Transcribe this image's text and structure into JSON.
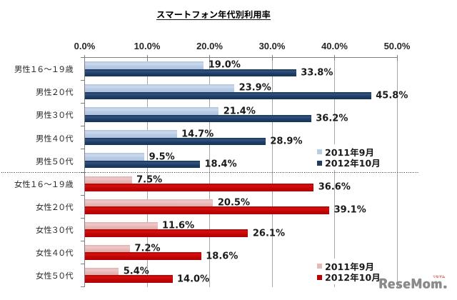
{
  "title": {
    "text": "スマートフォン年代別利用率"
  },
  "chart_data": {
    "type": "bar",
    "orientation": "horizontal",
    "title": "スマートフォン年代別利用率",
    "xlabel": "",
    "ylabel": "",
    "x_axis": {
      "min": 0,
      "max": 50,
      "tick_step": 10,
      "unit": "%",
      "tick_labels": [
        "0.0%",
        "10.0%",
        "20.0%",
        "30.0%",
        "40.0%",
        "50.0%"
      ],
      "grid": true,
      "position": "top"
    },
    "value_label_decimals": 1,
    "value_label_suffix": "%",
    "sections": [
      {
        "name": "male",
        "categories": [
          "男性16〜19歳",
          "男性20代",
          "男性30代",
          "男性40代",
          "男性50代"
        ],
        "series": [
          {
            "name": "2011年9月",
            "color": "#B8CCE4",
            "values": [
              19.0,
              23.9,
              21.4,
              14.7,
              9.5
            ]
          },
          {
            "name": "2012年10月",
            "color": "#1F3D64",
            "values": [
              33.8,
              45.8,
              36.2,
              28.9,
              18.4
            ]
          }
        ],
        "legend": {
          "entries": [
            "2011年9月",
            "2012年10月"
          ],
          "position": "right-middle"
        }
      },
      {
        "name": "female",
        "categories": [
          "女性16〜19歳",
          "女性20代",
          "女性30代",
          "女性40代",
          "女性50代"
        ],
        "series": [
          {
            "name": "2011年9月",
            "color": "#E6B9B8",
            "values": [
              7.5,
              20.5,
              11.6,
              7.2,
              5.4
            ]
          },
          {
            "name": "2012年10月",
            "color": "#C00000",
            "values": [
              36.6,
              39.1,
              26.1,
              18.6,
              14.0
            ]
          }
        ],
        "legend": {
          "entries": [
            "2011年9月",
            "2012年10月"
          ],
          "position": "right-bottom"
        }
      }
    ],
    "separator": {
      "style": "dotted",
      "between": [
        "male",
        "female"
      ]
    },
    "colors": {
      "male_2011": "#B8CCE4",
      "male_2012": "#1F3D64",
      "female_2011": "#E6B9B8",
      "female_2012": "#C00000",
      "gridline": "#A6A6A6",
      "axis": "#808080",
      "label": "#262626"
    }
  },
  "watermark": {
    "logo_text": "ReseMom.",
    "logo_tag": "リセマム",
    "logo_color": "#8A8A8A",
    "tag_color": "#CC3333"
  }
}
